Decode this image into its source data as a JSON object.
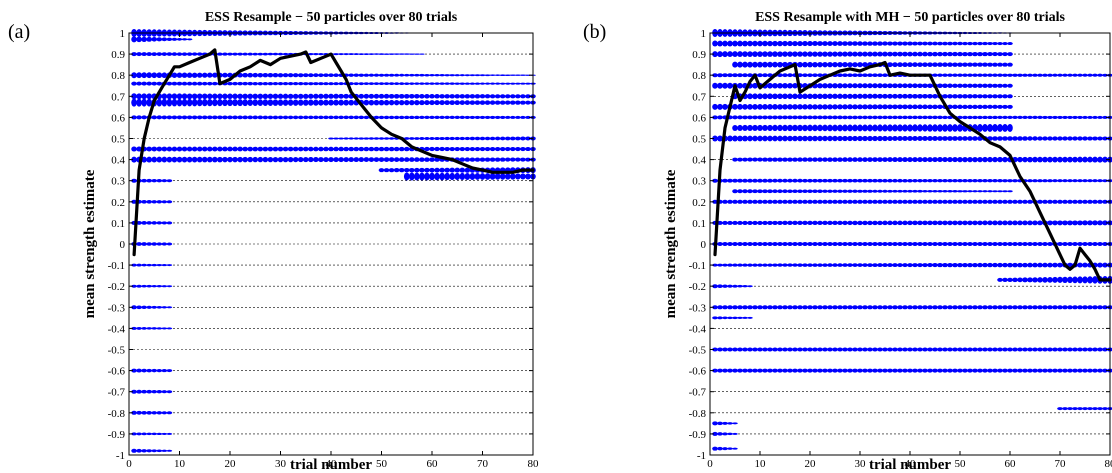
{
  "chart_data": [
    {
      "type": "scatter",
      "panel": "(a)",
      "title": "ESS Resample − 50 particles over 80 trials",
      "xlabel": "trial number",
      "ylabel": "mean strength estimate",
      "xlim": [
        0,
        80
      ],
      "ylim": [
        -1,
        1
      ],
      "xticks": [
        0,
        10,
        20,
        30,
        40,
        50,
        60,
        70,
        80
      ],
      "yticks": [
        -1,
        -0.9,
        -0.8,
        -0.7,
        -0.6,
        -0.5,
        -0.4,
        -0.3,
        -0.2,
        -0.1,
        0,
        0.1,
        0.2,
        0.3,
        0.4,
        0.5,
        0.6,
        0.7,
        0.8,
        0.9,
        1
      ],
      "grid": "horizontal dashed",
      "marker_color": "#0000ff",
      "line_color": "#000000",
      "particle_bands": [
        {
          "y": 1.0,
          "x0": 1,
          "x1": 55,
          "w0": 4,
          "w1": 0.6
        },
        {
          "y": 0.97,
          "x0": 1,
          "x1": 12,
          "w0": 3,
          "w1": 1
        },
        {
          "y": 0.9,
          "x0": 1,
          "x1": 58,
          "w0": 2,
          "w1": 0.6
        },
        {
          "y": 0.8,
          "x0": 1,
          "x1": 80,
          "w0": 3,
          "w1": 0.6
        },
        {
          "y": 0.76,
          "x0": 1,
          "x1": 80,
          "w0": 2,
          "w1": 1
        },
        {
          "y": 0.7,
          "x0": 1,
          "x1": 80,
          "w0": 3,
          "w1": 2
        },
        {
          "y": 0.67,
          "x0": 1,
          "x1": 80,
          "w0": 4,
          "w1": 2
        },
        {
          "y": 0.6,
          "x0": 1,
          "x1": 80,
          "w0": 2,
          "w1": 1.5
        },
        {
          "y": 0.5,
          "x0": 40,
          "x1": 80,
          "w0": 1,
          "w1": 2
        },
        {
          "y": 0.45,
          "x0": 1,
          "x1": 80,
          "w0": 2.5,
          "w1": 2
        },
        {
          "y": 0.4,
          "x0": 1,
          "x1": 80,
          "w0": 3,
          "w1": 2
        },
        {
          "y": 0.35,
          "x0": 50,
          "x1": 80,
          "w0": 2,
          "w1": 3
        },
        {
          "y": 0.32,
          "x0": 55,
          "x1": 80,
          "w0": 4,
          "w1": 3
        },
        {
          "y": 0.3,
          "x0": 1,
          "x1": 8,
          "w0": 2,
          "w1": 1.5
        },
        {
          "y": 0.2,
          "x0": 1,
          "x1": 8,
          "w0": 2,
          "w1": 1.5
        },
        {
          "y": 0.1,
          "x0": 1,
          "x1": 8,
          "w0": 2,
          "w1": 1.5
        },
        {
          "y": 0.0,
          "x0": 1,
          "x1": 8,
          "w0": 2,
          "w1": 1.5
        },
        {
          "y": -0.1,
          "x0": 1,
          "x1": 8,
          "w0": 1.5,
          "w1": 1
        },
        {
          "y": -0.2,
          "x0": 1,
          "x1": 8,
          "w0": 1.5,
          "w1": 1
        },
        {
          "y": -0.3,
          "x0": 1,
          "x1": 8,
          "w0": 2,
          "w1": 1
        },
        {
          "y": -0.4,
          "x0": 1,
          "x1": 8,
          "w0": 1.5,
          "w1": 1
        },
        {
          "y": -0.6,
          "x0": 1,
          "x1": 8,
          "w0": 2,
          "w1": 1.5
        },
        {
          "y": -0.7,
          "x0": 1,
          "x1": 8,
          "w0": 2,
          "w1": 1.5
        },
        {
          "y": -0.8,
          "x0": 1,
          "x1": 8,
          "w0": 2,
          "w1": 1.5
        },
        {
          "y": -0.9,
          "x0": 1,
          "x1": 8,
          "w0": 1.5,
          "w1": 1
        },
        {
          "y": -0.98,
          "x0": 1,
          "x1": 8,
          "w0": 2,
          "w1": 1
        }
      ],
      "mean_x": [
        1,
        2,
        3,
        4,
        5,
        6,
        7,
        8,
        9,
        10,
        12,
        14,
        16,
        17,
        18,
        20,
        22,
        24,
        26,
        28,
        30,
        32,
        34,
        35,
        36,
        38,
        40,
        41,
        42,
        43,
        44,
        46,
        48,
        50,
        52,
        54,
        56,
        58,
        60,
        62,
        64,
        66,
        68,
        70,
        72,
        74,
        76,
        78,
        80
      ],
      "mean_y": [
        -0.05,
        0.35,
        0.5,
        0.6,
        0.68,
        0.72,
        0.76,
        0.8,
        0.84,
        0.84,
        0.86,
        0.88,
        0.9,
        0.92,
        0.76,
        0.78,
        0.82,
        0.84,
        0.87,
        0.85,
        0.88,
        0.89,
        0.9,
        0.91,
        0.86,
        0.88,
        0.9,
        0.86,
        0.82,
        0.78,
        0.72,
        0.66,
        0.6,
        0.55,
        0.52,
        0.5,
        0.46,
        0.44,
        0.42,
        0.41,
        0.4,
        0.38,
        0.36,
        0.35,
        0.34,
        0.34,
        0.34,
        0.35,
        0.35
      ]
    },
    {
      "type": "scatter",
      "panel": "(b)",
      "title": "ESS Resample with MH − 50 particles over 80 trials",
      "xlabel": "trial number",
      "ylabel": "mean strength estimate",
      "xlim": [
        0,
        80
      ],
      "ylim": [
        -1,
        1
      ],
      "xticks": [
        0,
        10,
        20,
        30,
        40,
        50,
        60,
        70,
        80
      ],
      "yticks": [
        -1,
        -0.9,
        -0.8,
        -0.7,
        -0.6,
        -0.5,
        -0.4,
        -0.3,
        -0.2,
        -0.1,
        0,
        0.1,
        0.2,
        0.3,
        0.4,
        0.5,
        0.6,
        0.7,
        0.8,
        0.9,
        1
      ],
      "grid": "horizontal dashed",
      "marker_color": "#0000ff",
      "line_color": "#000000",
      "particle_bands": [
        {
          "y": 1.0,
          "x0": 1,
          "x1": 60,
          "w0": 4,
          "w1": 0.6
        },
        {
          "y": 0.95,
          "x0": 1,
          "x1": 60,
          "w0": 3,
          "w1": 1.5
        },
        {
          "y": 0.9,
          "x0": 1,
          "x1": 60,
          "w0": 3,
          "w1": 2
        },
        {
          "y": 0.85,
          "x0": 5,
          "x1": 60,
          "w0": 3,
          "w1": 2
        },
        {
          "y": 0.8,
          "x0": 1,
          "x1": 80,
          "w0": 2,
          "w1": 1.5
        },
        {
          "y": 0.75,
          "x0": 1,
          "x1": 60,
          "w0": 3,
          "w1": 2
        },
        {
          "y": 0.7,
          "x0": 5,
          "x1": 60,
          "w0": 3,
          "w1": 2
        },
        {
          "y": 0.65,
          "x0": 1,
          "x1": 60,
          "w0": 3,
          "w1": 2
        },
        {
          "y": 0.6,
          "x0": 1,
          "x1": 80,
          "w0": 2,
          "w1": 1.5
        },
        {
          "y": 0.55,
          "x0": 5,
          "x1": 60,
          "w0": 3,
          "w1": 4
        },
        {
          "y": 0.5,
          "x0": 1,
          "x1": 80,
          "w0": 3,
          "w1": 2
        },
        {
          "y": 0.4,
          "x0": 5,
          "x1": 80,
          "w0": 2,
          "w1": 3
        },
        {
          "y": 0.3,
          "x0": 1,
          "x1": 80,
          "w0": 2,
          "w1": 1.5
        },
        {
          "y": 0.25,
          "x0": 5,
          "x1": 60,
          "w0": 2,
          "w1": 1
        },
        {
          "y": 0.2,
          "x0": 1,
          "x1": 80,
          "w0": 2,
          "w1": 2
        },
        {
          "y": 0.1,
          "x0": 1,
          "x1": 80,
          "w0": 2,
          "w1": 2.5
        },
        {
          "y": 0.0,
          "x0": 1,
          "x1": 80,
          "w0": 2,
          "w1": 2
        },
        {
          "y": -0.1,
          "x0": 1,
          "x1": 80,
          "w0": 1.5,
          "w1": 2.5
        },
        {
          "y": -0.17,
          "x0": 58,
          "x1": 80,
          "w0": 2,
          "w1": 4
        },
        {
          "y": -0.2,
          "x0": 1,
          "x1": 8,
          "w0": 2,
          "w1": 1
        },
        {
          "y": -0.3,
          "x0": 1,
          "x1": 80,
          "w0": 2,
          "w1": 2
        },
        {
          "y": -0.35,
          "x0": 1,
          "x1": 8,
          "w0": 1.5,
          "w1": 1
        },
        {
          "y": -0.5,
          "x0": 1,
          "x1": 80,
          "w0": 2,
          "w1": 2
        },
        {
          "y": -0.6,
          "x0": 1,
          "x1": 80,
          "w0": 2,
          "w1": 2
        },
        {
          "y": -0.78,
          "x0": 70,
          "x1": 80,
          "w0": 1.5,
          "w1": 1.5
        },
        {
          "y": -0.85,
          "x0": 1,
          "x1": 5,
          "w0": 2,
          "w1": 1
        },
        {
          "y": -0.9,
          "x0": 1,
          "x1": 5,
          "w0": 2,
          "w1": 1
        },
        {
          "y": -0.97,
          "x0": 1,
          "x1": 5,
          "w0": 2,
          "w1": 1
        }
      ],
      "mean_x": [
        1,
        2,
        3,
        4,
        5,
        6,
        7,
        8,
        9,
        10,
        12,
        14,
        16,
        17,
        18,
        20,
        22,
        24,
        26,
        28,
        30,
        32,
        34,
        35,
        36,
        38,
        40,
        42,
        44,
        46,
        48,
        50,
        52,
        54,
        56,
        58,
        60,
        62,
        64,
        66,
        68,
        70,
        71,
        72,
        73,
        74,
        75,
        76,
        77,
        78,
        80
      ],
      "mean_y": [
        -0.05,
        0.35,
        0.55,
        0.65,
        0.75,
        0.68,
        0.72,
        0.77,
        0.8,
        0.74,
        0.78,
        0.82,
        0.84,
        0.85,
        0.72,
        0.75,
        0.78,
        0.8,
        0.82,
        0.83,
        0.82,
        0.84,
        0.85,
        0.86,
        0.8,
        0.81,
        0.8,
        0.8,
        0.8,
        0.7,
        0.62,
        0.58,
        0.55,
        0.52,
        0.48,
        0.46,
        0.42,
        0.32,
        0.25,
        0.15,
        0.05,
        -0.05,
        -0.1,
        -0.12,
        -0.1,
        -0.02,
        -0.05,
        -0.08,
        -0.12,
        -0.17,
        -0.17
      ]
    }
  ]
}
